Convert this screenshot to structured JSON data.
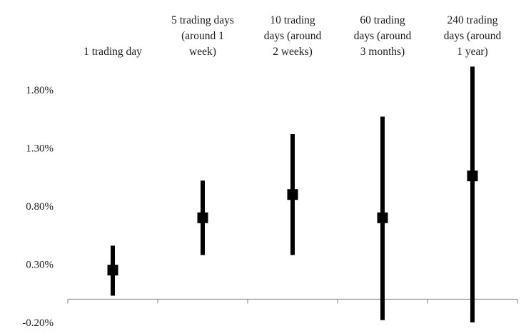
{
  "chart_data": {
    "type": "errorbar",
    "categories": [
      [
        "1 trading day"
      ],
      [
        "5 trading days",
        "(around 1",
        "week)"
      ],
      [
        "10 trading",
        "days (around",
        "2 weeks)"
      ],
      [
        "60 trading",
        "days (around",
        "3 months)"
      ],
      [
        "240 trading",
        "days (around",
        "1 year)"
      ]
    ],
    "points": [
      {
        "mean": 0.25,
        "low": 0.03,
        "high": 0.46
      },
      {
        "mean": 0.7,
        "low": 0.38,
        "high": 1.02
      },
      {
        "mean": 0.9,
        "low": 0.38,
        "high": 1.42
      },
      {
        "mean": 0.7,
        "low": -0.18,
        "high": 1.57
      },
      {
        "mean": 1.06,
        "low": -0.2,
        "high": 2.0
      }
    ],
    "unit": "%",
    "yticks": [
      "1.80%",
      "1.30%",
      "0.80%",
      "0.30%",
      "-0.20%"
    ],
    "ytick_values": [
      1.8,
      1.3,
      0.8,
      0.3,
      -0.2
    ],
    "ylim": [
      -0.2,
      2.0
    ],
    "zero_line": true,
    "grid": false,
    "legend": "none",
    "colors": {
      "bar": "#000000",
      "axis": "#808080",
      "text": "#1a1a1a"
    }
  }
}
